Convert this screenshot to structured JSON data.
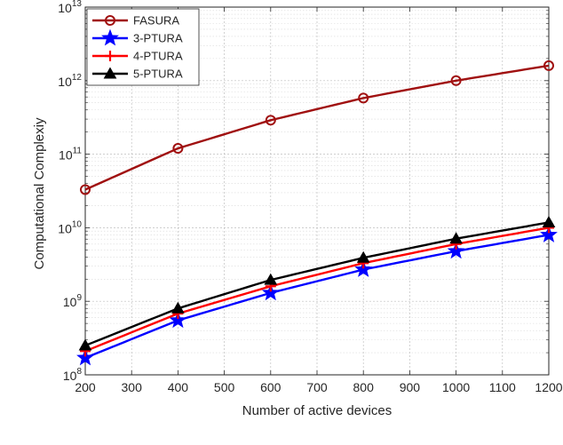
{
  "chart_data": {
    "type": "line",
    "title": "",
    "xlabel": "Number of active devices",
    "ylabel": "Computational Complexiy",
    "x": [
      200,
      400,
      600,
      800,
      1000,
      1200
    ],
    "xlim": [
      200,
      1200
    ],
    "xticks": [
      200,
      300,
      400,
      500,
      600,
      700,
      800,
      900,
      1000,
      1100,
      1200
    ],
    "yscale": "log",
    "ylim": [
      100000000,
      10000000000000
    ],
    "yticks": [
      {
        "value": 100000000,
        "base": "10",
        "exp": "8"
      },
      {
        "value": 1000000000,
        "base": "10",
        "exp": "9"
      },
      {
        "value": 10000000000,
        "base": "10",
        "exp": "10"
      },
      {
        "value": 100000000000,
        "base": "10",
        "exp": "11"
      },
      {
        "value": 1000000000000,
        "base": "10",
        "exp": "12"
      },
      {
        "value": 10000000000000,
        "base": "10",
        "exp": "13"
      }
    ],
    "grid": true,
    "legend_position": "top-left",
    "series": [
      {
        "name": "FASURA",
        "color": "#a01010",
        "marker": "circle",
        "values": [
          33000000000,
          120000000000,
          290000000000,
          580000000000,
          1000000000000,
          1600000000000
        ]
      },
      {
        "name": "3-PTURA",
        "color": "#0000ff",
        "marker": "star",
        "values": [
          170000000,
          550000000,
          1300000000,
          2700000000,
          4800000000,
          8000000000
        ]
      },
      {
        "name": "4-PTURA",
        "color": "#ff0000",
        "marker": "plus",
        "values": [
          210000000,
          680000000,
          1600000000,
          3300000000,
          6000000000,
          10000000000
        ]
      },
      {
        "name": "5-PTURA",
        "color": "#000000",
        "marker": "triangle",
        "values": [
          250000000,
          800000000,
          1950000000,
          3900000000,
          7100000000,
          11800000000
        ]
      }
    ]
  }
}
